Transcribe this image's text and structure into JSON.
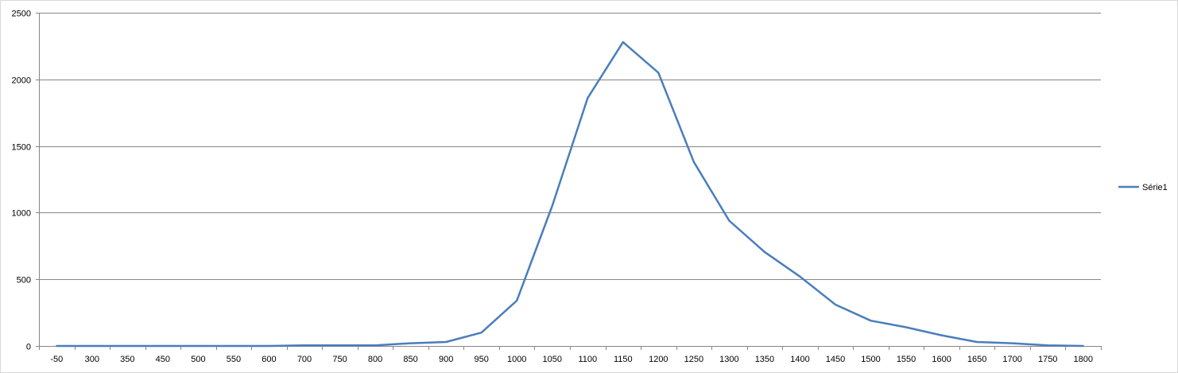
{
  "chart_data": {
    "type": "line",
    "title": "",
    "xlabel": "",
    "ylabel": "",
    "categories": [
      "-50",
      "300",
      "350",
      "450",
      "500",
      "550",
      "600",
      "700",
      "750",
      "800",
      "850",
      "900",
      "950",
      "1000",
      "1050",
      "1100",
      "1150",
      "1200",
      "1250",
      "1300",
      "1350",
      "1400",
      "1450",
      "1500",
      "1550",
      "1600",
      "1650",
      "1700",
      "1750",
      "1800"
    ],
    "ylim": [
      0,
      2500
    ],
    "yticks": [
      0,
      500,
      1000,
      1500,
      2000,
      2500
    ],
    "grid": true,
    "legend_position": "right",
    "series": [
      {
        "name": "Série1",
        "color": "#4a7ebb",
        "values": [
          0,
          0,
          0,
          0,
          0,
          0,
          0,
          5,
          5,
          5,
          20,
          30,
          100,
          340,
          1050,
          1860,
          2280,
          2050,
          1380,
          940,
          705,
          520,
          310,
          190,
          140,
          80,
          30,
          20,
          5,
          0
        ]
      }
    ]
  }
}
